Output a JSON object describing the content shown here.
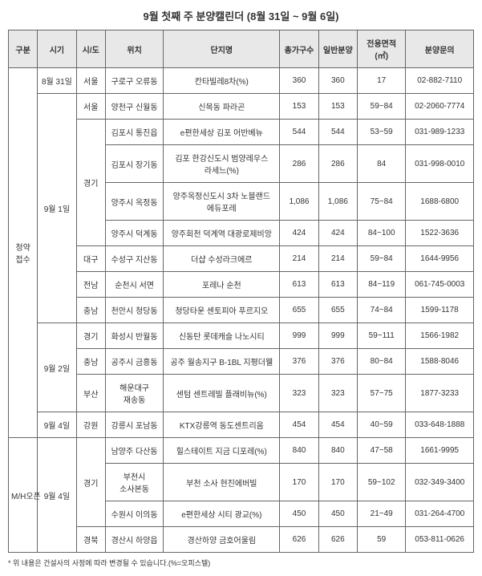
{
  "title": "9월 첫째 주 분양캘린더 (8월 31일 ~ 9월 6일)",
  "headers": [
    "구분",
    "시기",
    "시/도",
    "위치",
    "단지명",
    "총가구수",
    "일반분양",
    "전용면적(㎡)",
    "분양문의"
  ],
  "footnote": "* 위 내용은 건설사의 사정에 따라 변경될 수 있습니다.(%=오피스텔)",
  "rows": [
    {
      "c2": "서울",
      "c3": "구로구 오류동",
      "c4": "칸타빌레8차(%)",
      "c5": "360",
      "c6": "360",
      "c7": "17",
      "c8": "02-882-7110"
    },
    {
      "c2": "서울",
      "c3": "양천구 신월동",
      "c4": "신목동 파라곤",
      "c5": "153",
      "c6": "153",
      "c7": "59~84",
      "c8": "02-2060-7774"
    },
    {
      "c3": "김포시 통진읍",
      "c4": "e편한세상 김포 어반베뉴",
      "c5": "544",
      "c6": "544",
      "c7": "53~59",
      "c8": "031-989-1233"
    },
    {
      "c3": "김포시 장기동",
      "c4": "김포 한강신도시 범양레우스 라세느(%)",
      "c5": "286",
      "c6": "286",
      "c7": "84",
      "c8": "031-998-0010"
    },
    {
      "c3": "양주시 옥정동",
      "c4": "양주옥정신도시 3차 노블랜드 에듀포레",
      "c5": "1,086",
      "c6": "1,086",
      "c7": "75~84",
      "c8": "1688-6800"
    },
    {
      "c3": "양주시 덕계동",
      "c4": "양주회천 덕계역 대광로제비앙",
      "c5": "424",
      "c6": "424",
      "c7": "84~100",
      "c8": "1522-3636"
    },
    {
      "c2": "대구",
      "c3": "수성구 지산동",
      "c4": "더샵 수성라크에르",
      "c5": "214",
      "c6": "214",
      "c7": "59~84",
      "c8": "1644-9956"
    },
    {
      "c2": "전남",
      "c3": "순천시 서면",
      "c4": "포레나 순천",
      "c5": "613",
      "c6": "613",
      "c7": "84~119",
      "c8": "061-745-0003"
    },
    {
      "c2": "충남",
      "c3": "천안시 청당동",
      "c4": "청당타운 센토피아 푸르지오",
      "c5": "655",
      "c6": "655",
      "c7": "74~84",
      "c8": "1599-1178"
    },
    {
      "c2": "경기",
      "c3": "화성시 반월동",
      "c4": "신동탄 롯데캐슬 나노시티",
      "c5": "999",
      "c6": "999",
      "c7": "59~111",
      "c8": "1566-1982"
    },
    {
      "c2": "충남",
      "c3": "공주시 금흥동",
      "c4": "공주 월송지구 B-1BL 지평더웰",
      "c5": "376",
      "c6": "376",
      "c7": "80~84",
      "c8": "1588-8046"
    },
    {
      "c2": "부산",
      "c3": "해운대구 재송동",
      "c4": "센텀 센트레빌 플래비뉴(%)",
      "c5": "323",
      "c6": "323",
      "c7": "57~75",
      "c8": "1877-3233"
    },
    {
      "c2": "강원",
      "c3": "강릉시 포남동",
      "c4": "KTX강릉역 동도센트리움",
      "c5": "454",
      "c6": "454",
      "c7": "40~59",
      "c8": "033-648-1888"
    },
    {
      "c3": "남양주 다산동",
      "c4": "힐스테이트 지금 디포레(%)",
      "c5": "840",
      "c6": "840",
      "c7": "47~58",
      "c8": "1661-9995"
    },
    {
      "c3": "부천시 소사본동",
      "c4": "부천 소사 현진에버빌",
      "c5": "170",
      "c6": "170",
      "c7": "59~102",
      "c8": "032-349-3400"
    },
    {
      "c3": "수원시 이의동",
      "c4": "e편한세상 시티 광교(%)",
      "c5": "450",
      "c6": "450",
      "c7": "21~49",
      "c8": "031-264-4700"
    },
    {
      "c2": "경북",
      "c3": "경산시 하양읍",
      "c4": "경산하양 금호어울림",
      "c5": "626",
      "c6": "626",
      "c7": "59",
      "c8": "053-811-0626"
    }
  ],
  "sect": {
    "g1": "청약 접수",
    "g2": "M/H오픈",
    "d1": "8월 31일",
    "d2": "9월 1일",
    "d3": "9월 2일",
    "d4": "9월 4일",
    "p_gyeonggi": "경기"
  }
}
